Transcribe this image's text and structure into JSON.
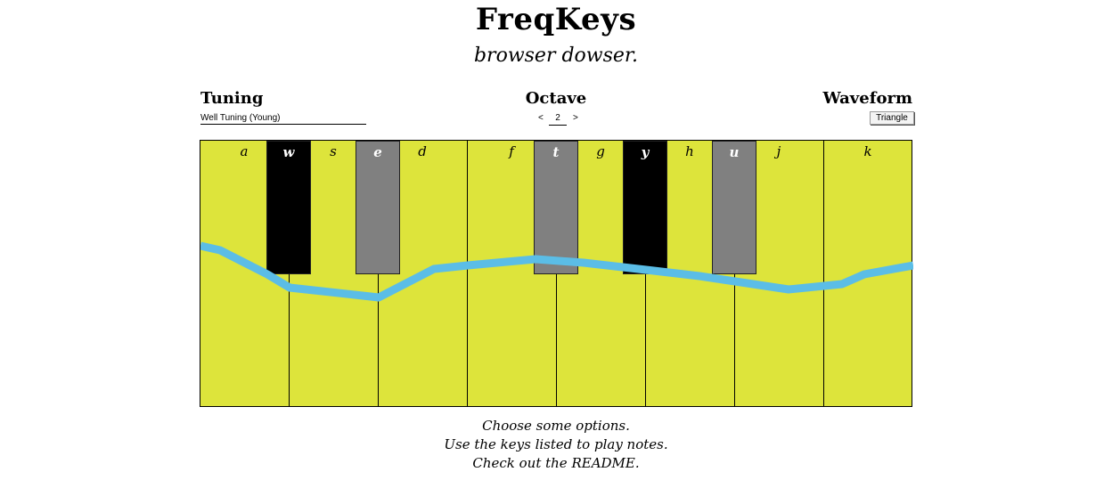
{
  "app": {
    "title": "FreqKeys",
    "subtitle": "browser dowser."
  },
  "controls": {
    "tuning": {
      "heading": "Tuning",
      "selected": "Well Tuning (Young)"
    },
    "octave": {
      "heading": "Octave",
      "value": "2",
      "decrement": "<",
      "increment": ">"
    },
    "waveform": {
      "heading": "Waveform",
      "selected": "Triangle"
    }
  },
  "keyboard": {
    "white_keys": [
      "a",
      "s",
      "d",
      "f",
      "g",
      "h",
      "j",
      "k"
    ],
    "black_keys": [
      {
        "label": "w",
        "color": "#000000"
      },
      {
        "label": "e",
        "color": "#808080"
      },
      {
        "label": "t",
        "color": "#808080"
      },
      {
        "label": "y",
        "color": "#000000"
      },
      {
        "label": "u",
        "color": "#808080"
      }
    ],
    "colors": {
      "white_key": "#dde43b",
      "waveform_line": "#5bbde6"
    }
  },
  "footer": {
    "line1": "Choose some options.",
    "line2": "Use the keys listed to play notes.",
    "line3_prefix": "Check out the ",
    "line3_link": "README."
  }
}
